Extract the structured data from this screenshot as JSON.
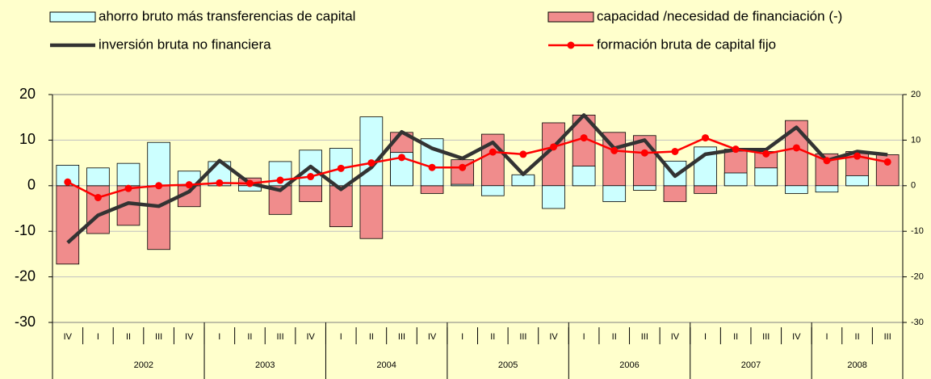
{
  "chart_data": {
    "type": "combo",
    "categories": [
      "IV",
      "I",
      "II",
      "III",
      "IV",
      "I",
      "II",
      "III",
      "IV",
      "I",
      "II",
      "III",
      "IV",
      "I",
      "II",
      "III",
      "IV",
      "I",
      "II",
      "III",
      "IV",
      "I",
      "II",
      "III",
      "IV",
      "I",
      "II",
      "III"
    ],
    "years": [
      null,
      "2002",
      null,
      null,
      null,
      "2003",
      null,
      null,
      null,
      "2004",
      null,
      null,
      null,
      "2005",
      null,
      null,
      null,
      "2006",
      null,
      null,
      null,
      "2007",
      null,
      null,
      null,
      "2008",
      null,
      null
    ],
    "series": [
      {
        "name": "capacidad /necesidad de financiación (-)",
        "kind": "bar",
        "color": "#f08c8c",
        "values": [
          -17.2,
          -10.5,
          -8.7,
          -14.0,
          -4.6,
          0.2,
          1.7,
          -6.3,
          -3.5,
          -9.0,
          -11.6,
          11.7,
          -1.7,
          5.7,
          11.3,
          2.1,
          13.8,
          15.5,
          11.7,
          11.0,
          -3.5,
          -1.7,
          8.0,
          7.5,
          14.3,
          7.0,
          7.5,
          6.8
        ]
      },
      {
        "name": "ahorro bruto más transferencias de capital",
        "kind": "bar",
        "color": "#ccffff",
        "values": [
          4.5,
          3.9,
          4.9,
          9.5,
          3.2,
          5.3,
          -1.2,
          5.3,
          7.8,
          8.2,
          15.1,
          7.3,
          10.3,
          0.3,
          -2.2,
          2.4,
          -5.0,
          4.3,
          -3.5,
          -1.0,
          5.4,
          8.5,
          2.8,
          3.9,
          -1.7,
          -1.4,
          2.2,
          0.0
        ]
      },
      {
        "name": "inversión bruta no financiera",
        "kind": "line",
        "color": "#333333",
        "markers": false,
        "values": [
          -12.5,
          -6.5,
          -3.8,
          -4.5,
          -1.3,
          5.5,
          0.5,
          -1.0,
          4.2,
          -0.8,
          4.0,
          11.8,
          8.2,
          6.0,
          9.5,
          2.5,
          8.5,
          15.5,
          8.2,
          10.0,
          2.1,
          6.9,
          7.9,
          7.9,
          12.8,
          5.5,
          7.5,
          6.8
        ]
      },
      {
        "name": "formación bruta de capital fijo",
        "kind": "line",
        "color": "#ff0000",
        "markers": true,
        "values": [
          0.8,
          -2.6,
          -0.6,
          0.0,
          0.2,
          0.6,
          0.5,
          1.2,
          2.0,
          3.8,
          5.0,
          6.2,
          4.0,
          4.0,
          7.4,
          6.9,
          8.5,
          10.5,
          7.7,
          7.2,
          7.5,
          10.5,
          8.0,
          7.0,
          8.3,
          5.5,
          6.5,
          5.2
        ]
      }
    ],
    "ylim": [
      -30,
      20
    ],
    "yticks": [
      20,
      10,
      0,
      -10,
      -20,
      -30
    ],
    "y2lim": [
      -30,
      20
    ],
    "y2ticks": [
      20,
      10,
      0,
      -10,
      -20,
      -30
    ],
    "grid": true
  }
}
